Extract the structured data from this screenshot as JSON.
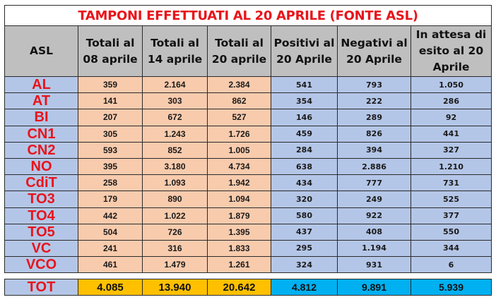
{
  "title": "TAMPONI EFFETTUATI AL 20 APRILE (FONTE ASL)",
  "headers": [
    {
      "lines": [
        "ASL"
      ]
    },
    {
      "lines": [
        "Totali al",
        "08 aprile"
      ]
    },
    {
      "lines": [
        "Totali al",
        "14 aprile"
      ]
    },
    {
      "lines": [
        "Totali al",
        "20 aprile"
      ]
    },
    {
      "lines": [
        "Positivi al",
        "20 Aprile"
      ]
    },
    {
      "lines": [
        "Negativi al",
        "20 Aprile"
      ]
    },
    {
      "lines": [
        "In attesa  di",
        "esito al 20",
        "Aprile"
      ]
    }
  ],
  "rows": [
    {
      "asl": "AL",
      "tot08": "359",
      "tot14": "2.164",
      "tot20": "2.384",
      "positivi": "541",
      "negativi": "793",
      "attesa": "1.050"
    },
    {
      "asl": "AT",
      "tot08": "141",
      "tot14": "303",
      "tot20": "862",
      "positivi": "354",
      "negativi": "222",
      "attesa": "286"
    },
    {
      "asl": "BI",
      "tot08": "207",
      "tot14": "672",
      "tot20": "527",
      "positivi": "146",
      "negativi": "289",
      "attesa": "92"
    },
    {
      "asl": "CN1",
      "tot08": "305",
      "tot14": "1.243",
      "tot20": "1.726",
      "positivi": "459",
      "negativi": "826",
      "attesa": "441"
    },
    {
      "asl": "CN2",
      "tot08": "593",
      "tot14": "852",
      "tot20": "1.005",
      "positivi": "284",
      "negativi": "394",
      "attesa": "327"
    },
    {
      "asl": "NO",
      "tot08": "395",
      "tot14": "3.180",
      "tot20": "4.734",
      "positivi": "638",
      "negativi": "2.886",
      "attesa": "1.210"
    },
    {
      "asl": "CdiT",
      "tot08": "258",
      "tot14": "1.093",
      "tot20": "1.942",
      "positivi": "434",
      "negativi": "777",
      "attesa": "731"
    },
    {
      "asl": "TO3",
      "tot08": "179",
      "tot14": "890",
      "tot20": "1.094",
      "positivi": "320",
      "negativi": "249",
      "attesa": "525"
    },
    {
      "asl": "TO4",
      "tot08": "442",
      "tot14": "1.022",
      "tot20": "1.879",
      "positivi": "580",
      "negativi": "922",
      "attesa": "377"
    },
    {
      "asl": "TO5",
      "tot08": "504",
      "tot14": "726",
      "tot20": "1.395",
      "positivi": "437",
      "negativi": "408",
      "attesa": "550"
    },
    {
      "asl": "VC",
      "tot08": "241",
      "tot14": "316",
      "tot20": "1.833",
      "positivi": "295",
      "negativi": "1.194",
      "attesa": "344"
    },
    {
      "asl": "VCO",
      "tot08": "461",
      "tot14": "1.479",
      "tot20": "1.261",
      "positivi": "324",
      "negativi": "931",
      "attesa": "6"
    }
  ],
  "total": {
    "asl": "TOT",
    "tot08": "4.085",
    "tot14": "13.940",
    "tot20": "20.642",
    "positivi": "4.812",
    "negativi": "9.891",
    "attesa": "5.939"
  },
  "colors": {
    "title_text": "#e8141b",
    "header_bg": "#bfbfbf",
    "asl_bg": "#b4c6e7",
    "totals_cells_bg": "#f8cbad",
    "results_cells_bg": "#b4c6e7",
    "tot_orange": "#ffc000",
    "tot_cyan": "#00b0f0"
  }
}
